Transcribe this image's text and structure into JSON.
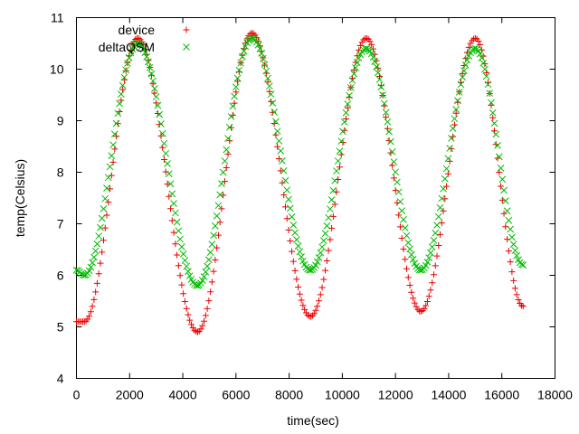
{
  "colors": {
    "device": "#ee0000",
    "deltaQSM": "#00bb00",
    "axis": "#000000",
    "background": "#ffffff"
  },
  "chart_data": {
    "type": "scatter",
    "title": "",
    "xlabel": "time(sec)",
    "ylabel": "temp(Celsius)",
    "xlim": [
      0,
      18000
    ],
    "ylim": [
      4,
      11
    ],
    "xticks": [
      0,
      2000,
      4000,
      6000,
      8000,
      10000,
      12000,
      14000,
      16000,
      18000
    ],
    "yticks": [
      4,
      5,
      6,
      7,
      8,
      9,
      10,
      11
    ],
    "grid": false,
    "legend": "top-left",
    "sample_interval": 60,
    "x_range": [
      0,
      16800
    ],
    "series": [
      {
        "name": "device",
        "marker": "plus",
        "color": "#ee0000",
        "keypoints": [
          [
            0,
            5.1
          ],
          [
            300,
            5.1
          ],
          [
            2300,
            10.6
          ],
          [
            4550,
            4.9
          ],
          [
            6600,
            10.7
          ],
          [
            8800,
            5.2
          ],
          [
            10900,
            10.6
          ],
          [
            12950,
            5.3
          ],
          [
            15000,
            10.6
          ],
          [
            16800,
            5.4
          ]
        ]
      },
      {
        "name": "deltaQSM",
        "marker": "cross",
        "color": "#00bb00",
        "keypoints": [
          [
            0,
            6.1
          ],
          [
            300,
            6.0
          ],
          [
            2300,
            10.5
          ],
          [
            4550,
            5.8
          ],
          [
            6600,
            10.6
          ],
          [
            8800,
            6.1
          ],
          [
            10900,
            10.4
          ],
          [
            12950,
            6.1
          ],
          [
            15000,
            10.4
          ],
          [
            16800,
            6.2
          ]
        ]
      }
    ]
  }
}
